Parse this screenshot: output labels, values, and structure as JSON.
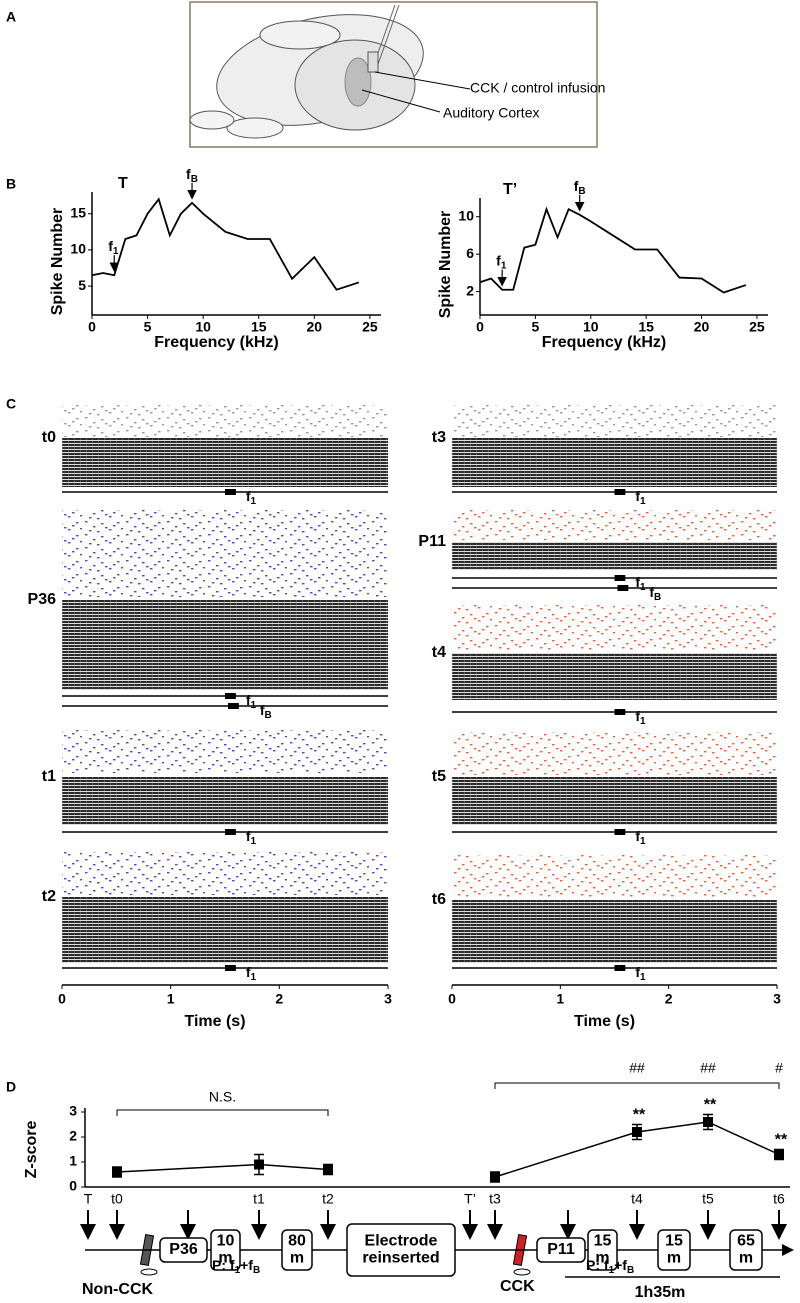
{
  "panel_labels": [
    "A",
    "B",
    "C",
    "D"
  ],
  "panel_a": {
    "labels": [
      "CCK / control infusion",
      "Auditory Cortex"
    ]
  },
  "chart_data": [
    {
      "type": "line",
      "title": "T",
      "xlabel": "Frequency (kHz)",
      "ylabel": "Spike Number",
      "color": "#000000",
      "x": [
        0,
        1,
        2,
        3,
        4,
        5,
        6,
        7,
        8,
        9,
        10,
        12,
        14,
        16,
        18,
        20,
        22,
        24
      ],
      "values": [
        6.5,
        6.8,
        6.5,
        11.5,
        12,
        15,
        17,
        12,
        15,
        16.5,
        15,
        12.5,
        11.5,
        11.5,
        6,
        9,
        4.5,
        5.5
      ],
      "xlim": [
        0,
        26
      ],
      "xticks": [
        0,
        5,
        10,
        15,
        20,
        25
      ],
      "ylim": [
        1,
        18
      ],
      "yticks": [
        5,
        10,
        15
      ],
      "annotations": [
        {
          "base": "f",
          "sub": "1",
          "x": 2
        },
        {
          "base": "f",
          "sub": "B",
          "x": 9
        }
      ]
    },
    {
      "type": "line",
      "title": "T’",
      "xlabel": "Frequency (kHz)",
      "ylabel": "Spike Number",
      "color": "#000000",
      "x": [
        0,
        1,
        2,
        3,
        4,
        5,
        6,
        7,
        8,
        9,
        10,
        12,
        14,
        16,
        18,
        20,
        22,
        24
      ],
      "values": [
        3,
        3.4,
        2.2,
        2.2,
        6.7,
        7,
        10.8,
        7.8,
        10.8,
        10.2,
        9.5,
        8,
        6.5,
        6.5,
        3.5,
        3.4,
        1.9,
        2.7
      ],
      "xlim": [
        0,
        26
      ],
      "xticks": [
        0,
        5,
        10,
        15,
        20,
        25
      ],
      "ylim": [
        -0.5,
        12
      ],
      "yticks": [
        2,
        6,
        10
      ],
      "annotations": [
        {
          "base": "f",
          "sub": "1",
          "x": 2
        },
        {
          "base": "f",
          "sub": "B",
          "x": 9
        }
      ]
    },
    {
      "type": "raster",
      "xlabel": "Time (s)",
      "xlim": [
        0,
        3
      ],
      "xticks": [
        0,
        1,
        2,
        3
      ],
      "panels": [
        {
          "label": "t0",
          "color": "#999999",
          "stimuli": [
            {
              "base": "f",
              "sub": "1"
            }
          ]
        },
        {
          "label": "P36",
          "color": "#4a4ad0",
          "stimuli": [
            {
              "base": "f",
              "sub": "1"
            },
            {
              "base": "f",
              "sub": "B"
            }
          ]
        },
        {
          "label": "t1",
          "color": "#4a4ad0",
          "stimuli": [
            {
              "base": "f",
              "sub": "1"
            }
          ]
        },
        {
          "label": "t2",
          "color": "#4a4ad0",
          "stimuli": [
            {
              "base": "f",
              "sub": "1"
            }
          ]
        }
      ]
    },
    {
      "type": "raster",
      "xlabel": "Time (s)",
      "xlim": [
        0,
        3
      ],
      "xticks": [
        0,
        1,
        2,
        3
      ],
      "panels": [
        {
          "label": "t3",
          "color": "#999999",
          "stimuli": [
            {
              "base": "f",
              "sub": "1"
            }
          ]
        },
        {
          "label": "P11",
          "color": "#f06030",
          "stimuli": [
            {
              "base": "f",
              "sub": "1"
            },
            {
              "base": "f",
              "sub": "B"
            }
          ]
        },
        {
          "label": "t4",
          "color": "#f06030",
          "stimuli": [
            {
              "base": "f",
              "sub": "1"
            }
          ]
        },
        {
          "label": "t5",
          "color": "#f06030",
          "stimuli": [
            {
              "base": "f",
              "sub": "1"
            }
          ]
        },
        {
          "label": "t6",
          "color": "#f06030",
          "stimuli": [
            {
              "base": "f",
              "sub": "1"
            }
          ]
        }
      ]
    },
    {
      "type": "line",
      "ylabel": "Z-score",
      "categories": [
        "t0",
        "t1",
        "t2",
        "t3",
        "t4",
        "t5",
        "t6"
      ],
      "ylim": [
        0,
        3
      ],
      "yticks": [
        0,
        1,
        2,
        3
      ],
      "series": [
        {
          "color": "#000000",
          "values": [
            0.6,
            0.9,
            0.7,
            null,
            null,
            null,
            null
          ],
          "errors": [
            0.2,
            0.4,
            0.2,
            null,
            null,
            null,
            null
          ]
        },
        {
          "color": "#000000",
          "values": [
            null,
            null,
            null,
            0.4,
            2.2,
            2.6,
            1.3
          ],
          "errors": [
            null,
            null,
            null,
            0.2,
            0.3,
            0.3,
            0.2
          ]
        }
      ],
      "annotations": {
        "ns": "N.S.",
        "hash": [
          "##",
          "##",
          "#"
        ],
        "stars": [
          "**",
          "**",
          "**"
        ]
      }
    }
  ],
  "timeline": {
    "markers": [
      "T",
      "T’"
    ],
    "boxes": [
      [
        "P36"
      ],
      [
        "10",
        "m"
      ],
      [
        "80",
        "m"
      ],
      [
        "Electrode",
        "reinserted"
      ],
      [
        "P11"
      ],
      [
        "15",
        "m"
      ],
      [
        "15",
        "m"
      ],
      [
        "65",
        "m"
      ]
    ],
    "pairing": [
      [
        "P: f",
        "1",
        "+f",
        "B"
      ],
      [
        "P: f",
        "1",
        "+f",
        "B"
      ]
    ],
    "groups": [
      "Non-CCK",
      "CCK"
    ],
    "duration": "1h35m"
  }
}
